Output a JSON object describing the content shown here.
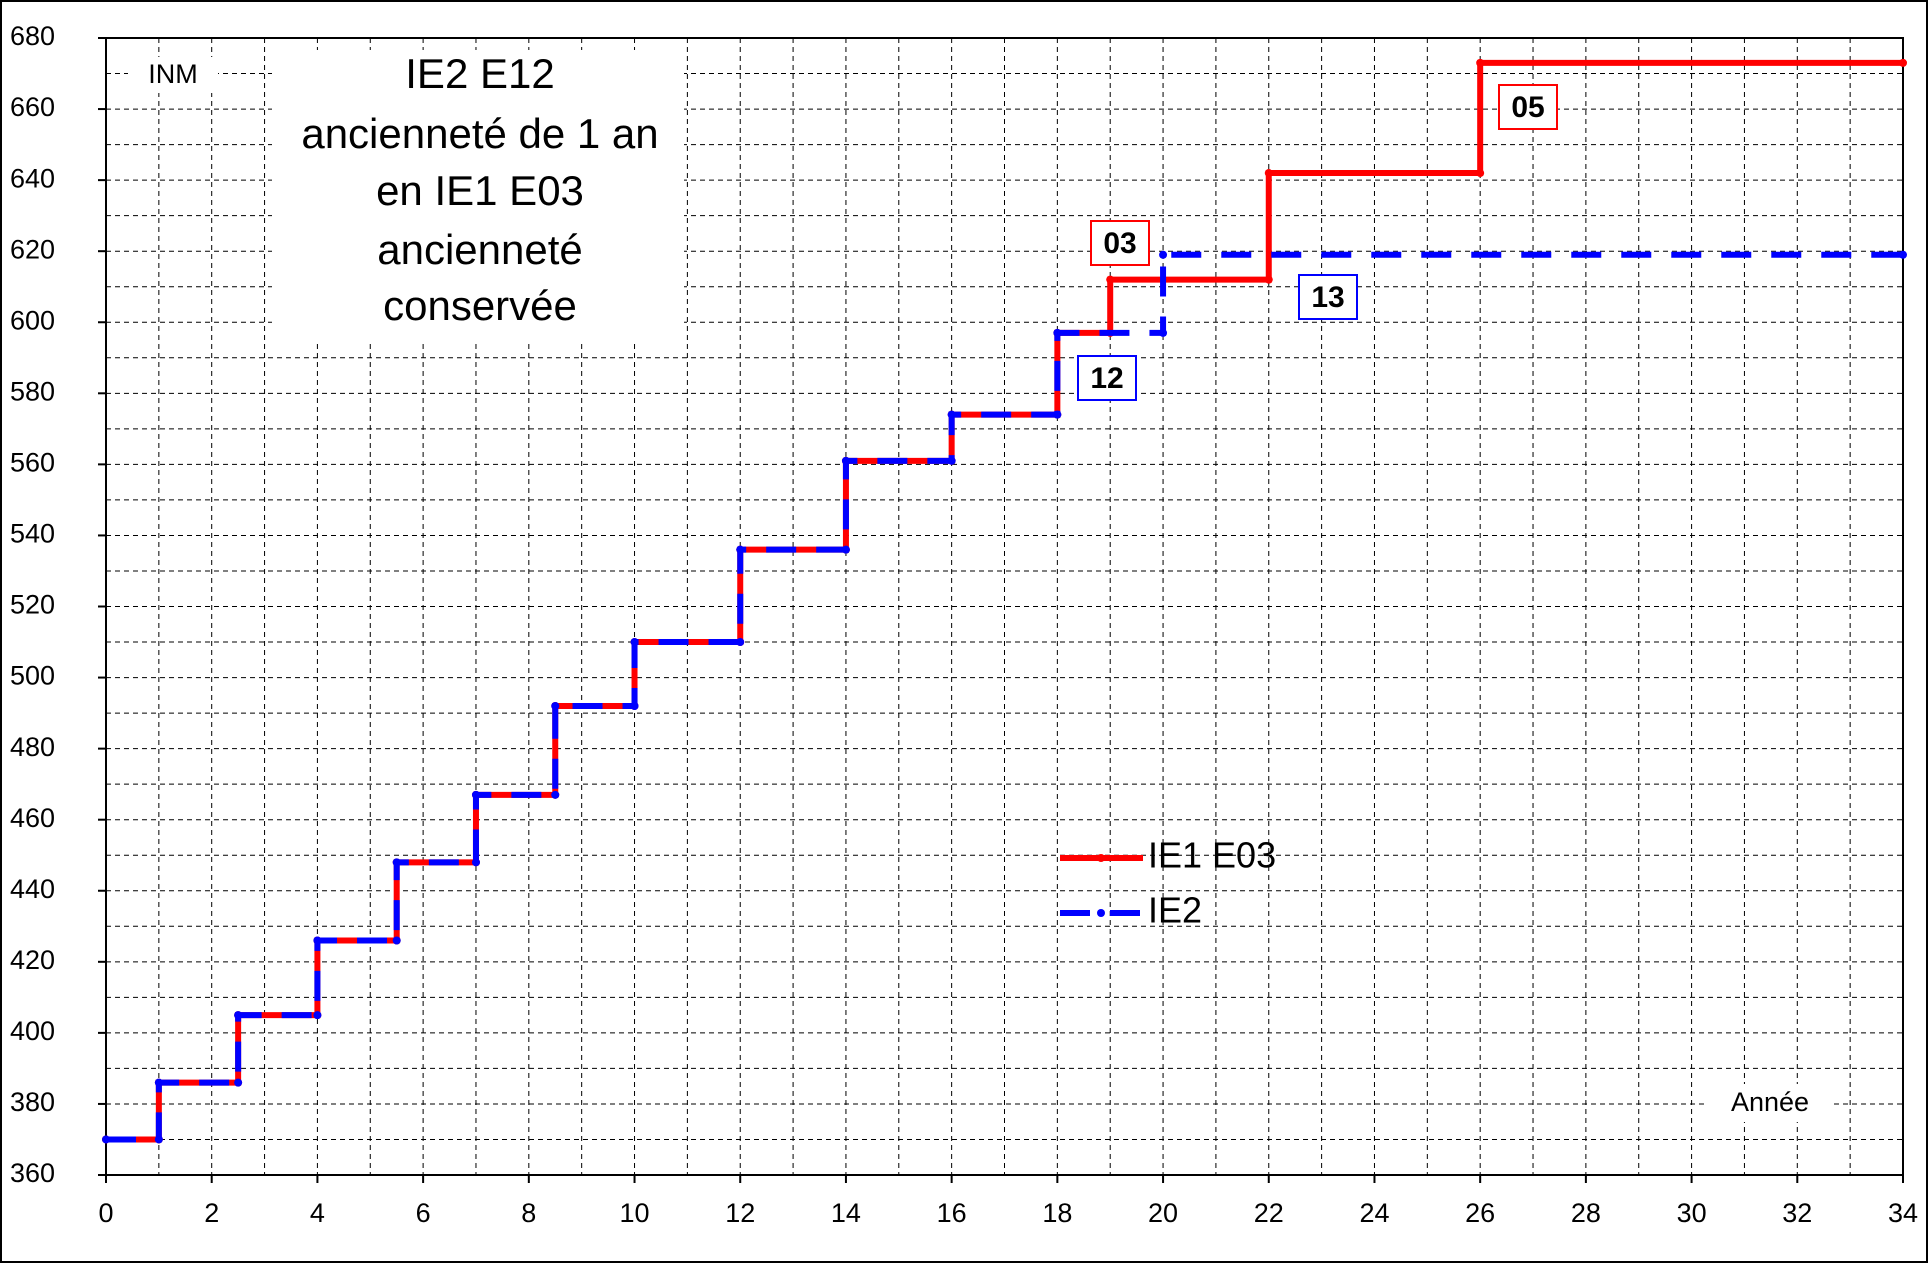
{
  "chart_data": {
    "type": "line",
    "y_label": "INM",
    "x_label": "Année",
    "text_box": [
      "IE2 E12",
      "ancienneté de 1 an",
      "en IE1 E03",
      "ancienneté",
      "conservée"
    ],
    "series": [
      {
        "name": "IE1 E03",
        "color": "#ff0000",
        "dashed": false,
        "x": [
          0,
          1,
          1,
          2.5,
          2.5,
          4,
          4,
          5.5,
          5.5,
          7,
          7,
          8.5,
          8.5,
          10,
          10,
          12,
          12,
          14,
          14,
          16,
          16,
          18,
          18,
          19,
          19,
          22,
          22,
          26,
          26,
          34
        ],
        "values": [
          370,
          370,
          386,
          386,
          405,
          405,
          426,
          426,
          448,
          448,
          467,
          467,
          492,
          492,
          510,
          510,
          536,
          536,
          561,
          561,
          574,
          574,
          597,
          597,
          612,
          612,
          642,
          642,
          673,
          673
        ]
      },
      {
        "name": "IE2",
        "color": "#0000ff",
        "dashed": true,
        "x": [
          0,
          1,
          1,
          2.5,
          2.5,
          4,
          4,
          5.5,
          5.5,
          7,
          7,
          8.5,
          8.5,
          10,
          10,
          12,
          12,
          14,
          14,
          16,
          16,
          18,
          18,
          20,
          20,
          34
        ],
        "values": [
          370,
          370,
          386,
          386,
          405,
          405,
          426,
          426,
          448,
          448,
          467,
          467,
          492,
          492,
          510,
          510,
          536,
          536,
          561,
          561,
          574,
          574,
          597,
          597,
          619,
          619
        ]
      }
    ],
    "annotations": [
      {
        "text": "05",
        "color": "#ff0000"
      },
      {
        "text": "03",
        "color": "#ff0000"
      },
      {
        "text": "12",
        "color": "#0000ff"
      },
      {
        "text": "13",
        "color": "#0000ff"
      }
    ],
    "xlim": [
      0,
      34
    ],
    "xticks": [
      0,
      2,
      4,
      6,
      8,
      10,
      12,
      14,
      16,
      18,
      20,
      22,
      24,
      26,
      28,
      30,
      32,
      34
    ],
    "ylim": [
      360,
      680
    ],
    "yticks": [
      360,
      380,
      400,
      420,
      440,
      460,
      480,
      500,
      520,
      540,
      560,
      580,
      600,
      620,
      640,
      660,
      680
    ],
    "grid": true
  }
}
